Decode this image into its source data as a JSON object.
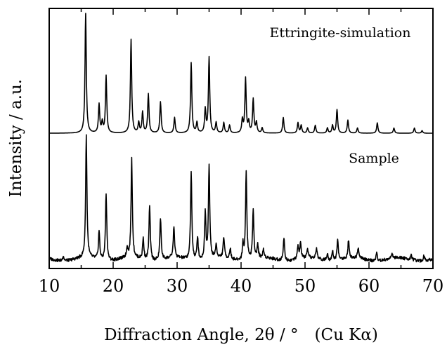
{
  "chart_data": {
    "type": "line",
    "xlabel": "Diffraction Angle, 2θ / °　(Cu Kα)",
    "ylabel": "Intensity / a.u.",
    "xlim": [
      10,
      70
    ],
    "x_ticks": [
      "10",
      "20",
      "30",
      "40",
      "50",
      "60",
      "70"
    ],
    "y_ticks_labeled": false,
    "series": [
      {
        "name": "Ettringite-simulation",
        "baseline": 0.52,
        "peaks": [
          {
            "x": 15.7,
            "y": 0.46
          },
          {
            "x": 17.8,
            "y": 0.11
          },
          {
            "x": 18.3,
            "y": 0.04
          },
          {
            "x": 18.9,
            "y": 0.22
          },
          {
            "x": 22.8,
            "y": 0.36
          },
          {
            "x": 24.0,
            "y": 0.04
          },
          {
            "x": 24.6,
            "y": 0.08
          },
          {
            "x": 25.5,
            "y": 0.15
          },
          {
            "x": 27.4,
            "y": 0.12
          },
          {
            "x": 29.6,
            "y": 0.06
          },
          {
            "x": 32.2,
            "y": 0.27
          },
          {
            "x": 33.1,
            "y": 0.04
          },
          {
            "x": 34.4,
            "y": 0.09
          },
          {
            "x": 35.0,
            "y": 0.29
          },
          {
            "x": 36.1,
            "y": 0.04
          },
          {
            "x": 37.3,
            "y": 0.04
          },
          {
            "x": 38.2,
            "y": 0.03
          },
          {
            "x": 40.2,
            "y": 0.05
          },
          {
            "x": 40.7,
            "y": 0.21
          },
          {
            "x": 41.2,
            "y": 0.04
          },
          {
            "x": 41.9,
            "y": 0.13
          },
          {
            "x": 42.4,
            "y": 0.04
          },
          {
            "x": 43.3,
            "y": 0.02
          },
          {
            "x": 46.6,
            "y": 0.06
          },
          {
            "x": 48.9,
            "y": 0.04
          },
          {
            "x": 49.4,
            "y": 0.03
          },
          {
            "x": 50.4,
            "y": 0.02
          },
          {
            "x": 51.6,
            "y": 0.03
          },
          {
            "x": 53.5,
            "y": 0.02
          },
          {
            "x": 54.3,
            "y": 0.03
          },
          {
            "x": 55.0,
            "y": 0.09
          },
          {
            "x": 56.7,
            "y": 0.05
          },
          {
            "x": 58.2,
            "y": 0.02
          },
          {
            "x": 61.3,
            "y": 0.04
          },
          {
            "x": 63.9,
            "y": 0.02
          },
          {
            "x": 67.1,
            "y": 0.02
          },
          {
            "x": 68.3,
            "y": 0.01
          }
        ]
      },
      {
        "name": "Sample",
        "baseline": 0.035,
        "peaks": [
          {
            "x": 12.2,
            "y": 0.02
          },
          {
            "x": 15.8,
            "y": 0.47
          },
          {
            "x": 17.8,
            "y": 0.11
          },
          {
            "x": 18.9,
            "y": 0.26
          },
          {
            "x": 22.2,
            "y": 0.04
          },
          {
            "x": 22.9,
            "y": 0.38
          },
          {
            "x": 24.7,
            "y": 0.08
          },
          {
            "x": 25.7,
            "y": 0.21
          },
          {
            "x": 27.4,
            "y": 0.16
          },
          {
            "x": 29.5,
            "y": 0.12
          },
          {
            "x": 32.2,
            "y": 0.34
          },
          {
            "x": 33.2,
            "y": 0.09
          },
          {
            "x": 34.4,
            "y": 0.18
          },
          {
            "x": 35.0,
            "y": 0.36
          },
          {
            "x": 36.1,
            "y": 0.05
          },
          {
            "x": 37.3,
            "y": 0.08
          },
          {
            "x": 38.3,
            "y": 0.04
          },
          {
            "x": 40.3,
            "y": 0.06
          },
          {
            "x": 40.8,
            "y": 0.34
          },
          {
            "x": 41.9,
            "y": 0.19
          },
          {
            "x": 42.6,
            "y": 0.05
          },
          {
            "x": 43.5,
            "y": 0.03
          },
          {
            "x": 46.7,
            "y": 0.09
          },
          {
            "x": 48.9,
            "y": 0.05
          },
          {
            "x": 49.3,
            "y": 0.06
          },
          {
            "x": 50.4,
            "y": 0.03
          },
          {
            "x": 51.8,
            "y": 0.04
          },
          {
            "x": 53.5,
            "y": 0.03
          },
          {
            "x": 54.3,
            "y": 0.04
          },
          {
            "x": 55.1,
            "y": 0.08
          },
          {
            "x": 56.8,
            "y": 0.07
          },
          {
            "x": 58.3,
            "y": 0.04
          },
          {
            "x": 61.2,
            "y": 0.03
          },
          {
            "x": 63.6,
            "y": 0.02
          },
          {
            "x": 66.6,
            "y": 0.02
          },
          {
            "x": 68.6,
            "y": 0.02
          }
        ]
      }
    ]
  }
}
